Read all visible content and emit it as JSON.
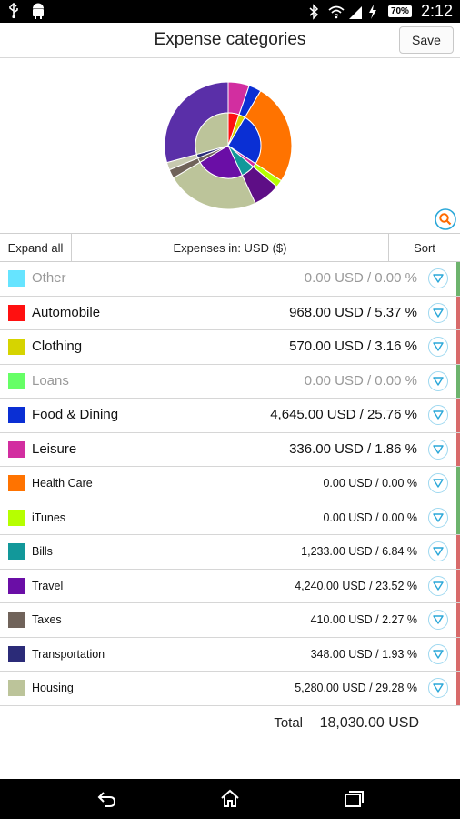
{
  "status_bar": {
    "time": "2:12",
    "battery": "70%",
    "icons": [
      "usb-icon",
      "android-icon",
      "bluetooth-icon",
      "wifi-icon",
      "signal-icon",
      "charging-icon",
      "battery-icon"
    ]
  },
  "header": {
    "title": "Expense categories",
    "save_label": "Save"
  },
  "colors": {
    "accent": "#2aa7d8",
    "edge_green": "#6db36d",
    "edge_red": "#d86a6a"
  },
  "table_header": {
    "expand_all": "Expand all",
    "title": "Expenses in: USD ($)",
    "sort": "Sort"
  },
  "categories": [
    {
      "name": "Other",
      "value": "0.00 USD / 0.00 %",
      "color": "#66e4ff",
      "amount": 0,
      "percent": 0,
      "muted": true,
      "small": false,
      "edge": "#6db36d"
    },
    {
      "name": "Automobile",
      "value": "968.00 USD / 5.37 %",
      "color": "#ff1010",
      "amount": 968,
      "percent": 5.37,
      "muted": false,
      "small": false,
      "edge": "#d86a6a"
    },
    {
      "name": "Clothing",
      "value": "570.00 USD / 3.16 %",
      "color": "#d6d400",
      "amount": 570,
      "percent": 3.16,
      "muted": false,
      "small": false,
      "edge": "#d86a6a"
    },
    {
      "name": "Loans",
      "value": "0.00 USD / 0.00 %",
      "color": "#66ff66",
      "amount": 0,
      "percent": 0,
      "muted": true,
      "small": false,
      "edge": "#6db36d"
    },
    {
      "name": "Food & Dining",
      "value": "4,645.00 USD / 25.76 %",
      "color": "#0a2fd4",
      "amount": 4645,
      "percent": 25.76,
      "muted": false,
      "small": false,
      "edge": "#d86a6a"
    },
    {
      "name": "Leisure",
      "value": "336.00 USD / 1.86 %",
      "color": "#d22ea0",
      "amount": 336,
      "percent": 1.86,
      "muted": false,
      "small": false,
      "edge": "#d86a6a"
    },
    {
      "name": "Health Care",
      "value": "0.00 USD / 0.00 %",
      "color": "#ff7300",
      "amount": 0,
      "percent": 0,
      "muted": false,
      "small": true,
      "edge": "#6db36d"
    },
    {
      "name": "iTunes",
      "value": "0.00 USD / 0.00 %",
      "color": "#b6ff00",
      "amount": 0,
      "percent": 0,
      "muted": false,
      "small": true,
      "edge": "#6db36d"
    },
    {
      "name": "Bills",
      "value": "1,233.00 USD / 6.84 %",
      "color": "#12989a",
      "amount": 1233,
      "percent": 6.84,
      "muted": false,
      "small": true,
      "edge": "#d86a6a"
    },
    {
      "name": "Travel",
      "value": "4,240.00 USD / 23.52 %",
      "color": "#6a0ea6",
      "amount": 4240,
      "percent": 23.52,
      "muted": false,
      "small": true,
      "edge": "#d86a6a"
    },
    {
      "name": "Taxes",
      "value": "410.00 USD / 2.27 %",
      "color": "#70635a",
      "amount": 410,
      "percent": 2.27,
      "muted": false,
      "small": true,
      "edge": "#d86a6a"
    },
    {
      "name": "Transportation",
      "value": "348.00 USD / 1.93 %",
      "color": "#2b2b78",
      "amount": 348,
      "percent": 1.93,
      "muted": false,
      "small": true,
      "edge": "#d86a6a"
    },
    {
      "name": "Housing",
      "value": "5,280.00 USD / 29.28 %",
      "color": "#bcc49a",
      "amount": 5280,
      "percent": 29.28,
      "muted": false,
      "small": true,
      "edge": "#d86a6a"
    }
  ],
  "total": {
    "label": "Total",
    "value": "18,030.00 USD"
  },
  "chart_data": {
    "type": "pie",
    "labels": [
      "Automobile",
      "Clothing",
      "Food & Dining",
      "Leisure",
      "Bills",
      "Travel",
      "Taxes",
      "Transportation",
      "Housing"
    ],
    "outer_ring": {
      "values": [
        5.37,
        3.16,
        25.76,
        1.86,
        6.84,
        23.52,
        2.27,
        1.93,
        29.28
      ],
      "colors": [
        "#d22ea0",
        "#0a2fd4",
        "#ff7300",
        "#b6ff00",
        "#5e0e86",
        "#bcc49a",
        "#70635a",
        "#c7c9b0",
        "#5a2fa8"
      ]
    },
    "inner_pie": {
      "values": [
        5.37,
        3.16,
        25.76,
        1.86,
        6.84,
        23.52,
        2.27,
        1.93,
        29.28
      ],
      "colors": [
        "#ff1010",
        "#d6d400",
        "#0a2fd4",
        "#d22ea0",
        "#12989a",
        "#6a0ea6",
        "#70635a",
        "#2b2b78",
        "#bcc49a"
      ]
    }
  }
}
